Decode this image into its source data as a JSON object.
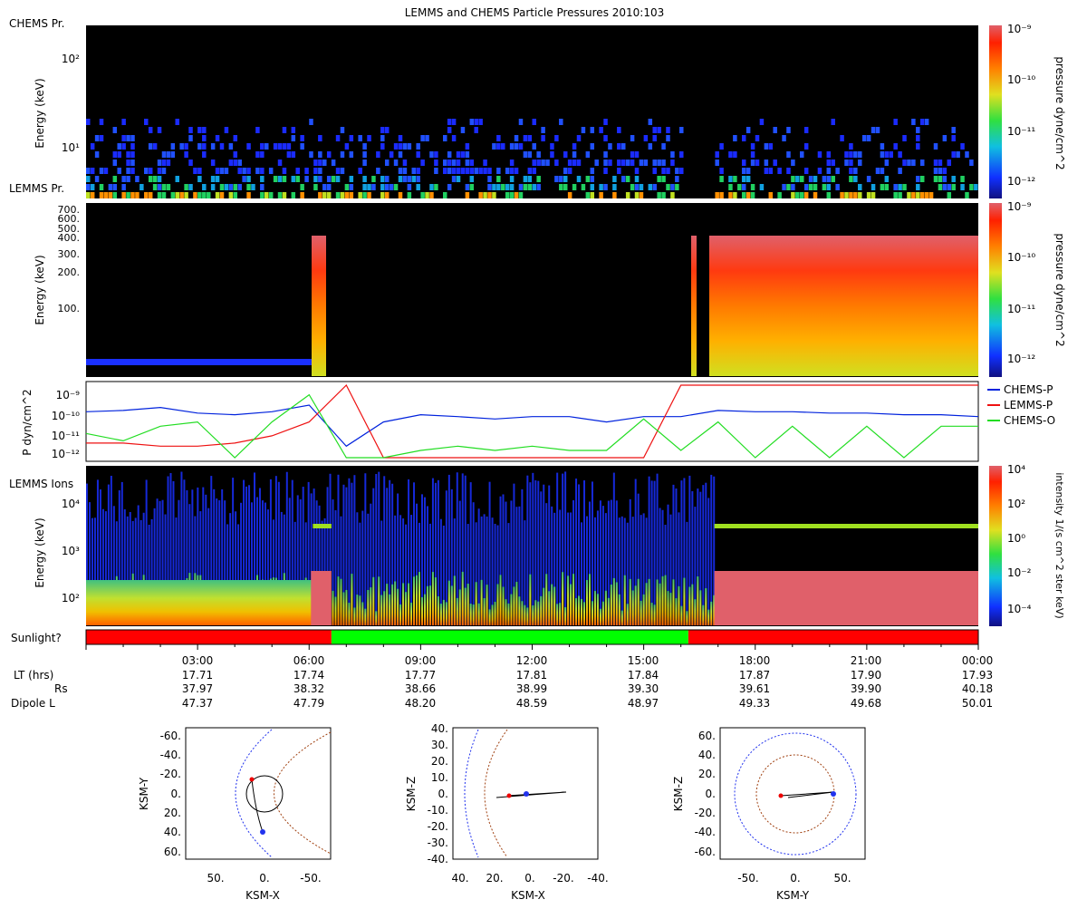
{
  "title": "LEMMS and CHEMS Particle Pressures  2010:103",
  "colors": {
    "blue_line": "#0022dd",
    "red_line": "#ee1111",
    "green_line": "#22dd22",
    "sun_red": "#ff0000",
    "sun_green": "#00ff00",
    "saturated": "#e0606a",
    "bg": "#000000"
  },
  "panels": {
    "chems_pr": {
      "label": "CHEMS Pr.",
      "ylabel": "Energy (keV)",
      "yticks": [
        "10²",
        "10¹"
      ],
      "colorbar": {
        "label": "pressure dyne/cm^2",
        "ticks": [
          "10⁻⁹",
          "10⁻¹⁰",
          "10⁻¹¹",
          "10⁻¹²"
        ]
      }
    },
    "lemms_pr": {
      "label": "LEMMS Pr.",
      "ylabel": "Energy (keV)",
      "yticks": [
        "700.",
        "600.",
        "500.",
        "400.",
        "300.",
        "200.",
        "100."
      ],
      "colorbar": {
        "label": "pressure dyne/cm^2",
        "ticks": [
          "10⁻⁹",
          "10⁻¹⁰",
          "10⁻¹¹",
          "10⁻¹²"
        ]
      }
    },
    "pressure": {
      "ylabel": "P dyn/cm^2",
      "yticks": [
        "10⁻⁹",
        "10⁻¹⁰",
        "10⁻¹¹",
        "10⁻¹²"
      ],
      "legend": [
        "CHEMS-P",
        "LEMMS-P",
        "CHEMS-O"
      ]
    },
    "lemms_ions": {
      "label": "LEMMS Ions",
      "ylabel": "Energy (keV)",
      "yticks": [
        "10⁴",
        "10³",
        "10²"
      ],
      "colorbar": {
        "label": "intensity 1/(s cm^2 ster keV)",
        "ticks": [
          "10⁴",
          "10²",
          "10⁰",
          "10⁻²",
          "10⁻⁴"
        ]
      }
    },
    "sunlight": {
      "label": "Sunlight?"
    }
  },
  "time_axis": {
    "ticks": [
      "03:00",
      "06:00",
      "09:00",
      "12:00",
      "15:00",
      "18:00",
      "21:00",
      "00:00"
    ],
    "rows": [
      {
        "name": "LT (hrs)",
        "values": [
          "17.71",
          "17.74",
          "17.77",
          "17.81",
          "17.84",
          "17.87",
          "17.90",
          "17.93"
        ]
      },
      {
        "name": "Rs",
        "values": [
          "37.97",
          "38.32",
          "38.66",
          "38.99",
          "39.30",
          "39.61",
          "39.90",
          "40.18"
        ]
      },
      {
        "name": "Dipole L",
        "values": [
          "47.37",
          "47.79",
          "48.20",
          "48.59",
          "48.97",
          "49.33",
          "49.68",
          "50.01"
        ]
      }
    ]
  },
  "orbit_plots": [
    {
      "xlabel": "KSM-X",
      "ylabel": "KSM-Y",
      "xticks": [
        "50.",
        "0.",
        "-50."
      ],
      "yticks": [
        "-60.",
        "-40.",
        "-20.",
        "0.",
        "20.",
        "40.",
        "60."
      ]
    },
    {
      "xlabel": "KSM-X",
      "ylabel": "KSM-Z",
      "xticks": [
        "40.",
        "20.",
        "0.",
        "-20.",
        "-40."
      ],
      "yticks": [
        "40.",
        "30.",
        "20.",
        "10.",
        "0.",
        "-10.",
        "-20.",
        "-30.",
        "-40."
      ]
    },
    {
      "xlabel": "KSM-Y",
      "ylabel": "KSM-Z",
      "xticks": [
        "-50.",
        "0.",
        "50."
      ],
      "yticks": [
        "60.",
        "40.",
        "20.",
        "0.",
        "-20.",
        "-40.",
        "-60."
      ]
    }
  ],
  "chart_data": [
    {
      "type": "line",
      "title": "LEMMS and CHEMS Particle Pressures  2010:103",
      "ylabel": "P dyn/cm^2",
      "y_scale": "log",
      "ylim": [
        1e-12,
        1e-09
      ],
      "x_hours": [
        0,
        1,
        2,
        3,
        4,
        5,
        6,
        7,
        8,
        9,
        10,
        11,
        12,
        13,
        14,
        15,
        16,
        17,
        18,
        19,
        20,
        21,
        22,
        23,
        24
      ],
      "series": [
        {
          "name": "CHEMS-P",
          "values": [
            8e-11,
            9e-11,
            1.2e-10,
            7e-11,
            6e-11,
            8e-11,
            1.5e-10,
            3e-12,
            3e-11,
            6e-11,
            5e-11,
            4e-11,
            5e-11,
            5e-11,
            3e-11,
            5e-11,
            5e-11,
            9e-11,
            8e-11,
            8e-11,
            7e-11,
            7e-11,
            6e-11,
            6e-11,
            5e-11
          ]
        },
        {
          "name": "LEMMS-P",
          "values": [
            4e-12,
            4e-12,
            3e-12,
            3e-12,
            4e-12,
            8e-12,
            3e-11,
            1e-09,
            1e-12,
            1e-12,
            1e-12,
            1e-12,
            1e-12,
            1e-12,
            1e-12,
            1e-12,
            1e-09,
            1e-09,
            1e-09,
            1e-09,
            1e-09,
            1e-09,
            1e-09,
            1e-09,
            1e-09
          ]
        },
        {
          "name": "CHEMS-O",
          "values": [
            1e-11,
            5e-12,
            2e-11,
            3e-11,
            1e-12,
            3e-11,
            4e-10,
            1e-12,
            1e-12,
            2e-12,
            3e-12,
            2e-12,
            3e-12,
            2e-12,
            2e-12,
            4e-11,
            2e-12,
            3e-11,
            1e-12,
            2e-11,
            1e-12,
            2e-11,
            1e-12,
            2e-11,
            2e-11
          ]
        }
      ]
    },
    {
      "type": "heatmap",
      "name": "sunlight",
      "segments": [
        {
          "from_hour": 0,
          "to_hour": 6.6,
          "state": "no"
        },
        {
          "from_hour": 6.6,
          "to_hour": 16.2,
          "state": "yes"
        },
        {
          "from_hour": 16.2,
          "to_hour": 24,
          "state": "no"
        }
      ]
    }
  ]
}
